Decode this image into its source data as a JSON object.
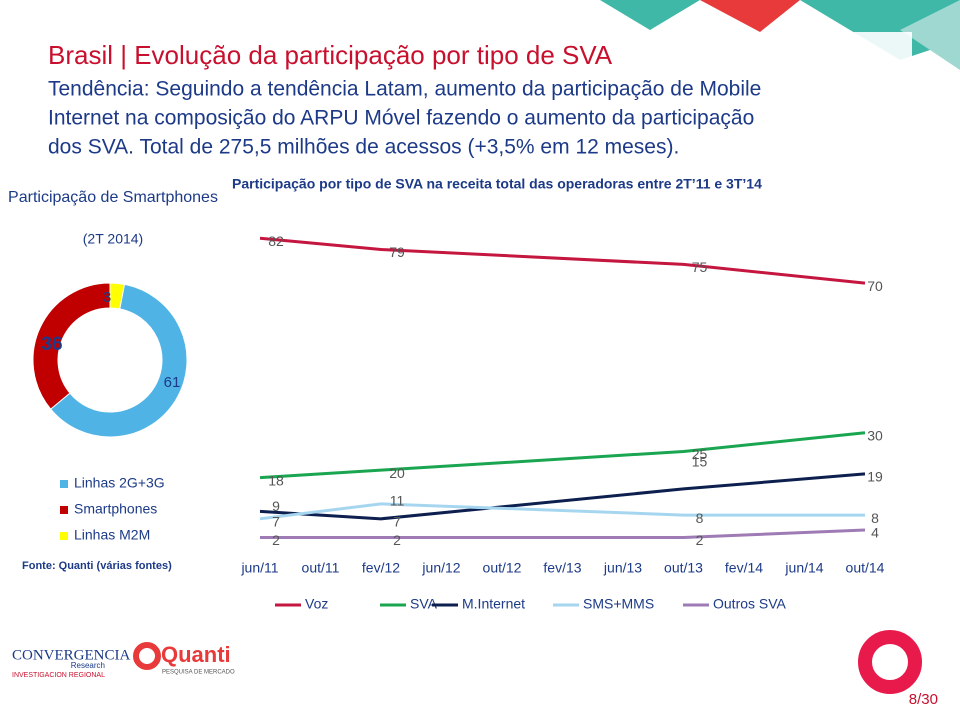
{
  "header": {
    "title": "Brasil | Evolução da participação por tipo de SVA",
    "subtitle_lines": [
      "Tendência: Seguindo a tendência Latam, aumento da participação de Mobile",
      "Internet na composição do ARPU Móvel fazendo o aumento da participação",
      "dos SVA. Total de 275,5 milhões de acessos (+3,5% em 12 meses)."
    ]
  },
  "chart_data": [
    {
      "type": "donut",
      "title": "Participação de Smartphones",
      "subtitle": "(2T 2014)",
      "categories": [
        "Linhas 2G+3G",
        "Smartphones",
        "Linhas M2M"
      ],
      "values": [
        61,
        36,
        3
      ],
      "colors": [
        "#4fb3e6",
        "#c00000",
        "#ffff00"
      ]
    },
    {
      "type": "line",
      "title": "Participação por tipo de SVA na receita total das operadoras entre 2T’11 e 3T’14",
      "categories": [
        "jun/11",
        "out/11",
        "fev/12",
        "jun/12",
        "out/12",
        "fev/13",
        "jun/13",
        "out/13",
        "fev/14",
        "jun/14",
        "out/14"
      ],
      "x": [
        "jun/11",
        "fev/12",
        "out/13",
        "out/14"
      ],
      "ylim": [
        0,
        85
      ],
      "series": [
        {
          "name": "Voz",
          "color": "#c4163f",
          "values": [
            82,
            79,
            75,
            70
          ]
        },
        {
          "name": "SVA",
          "color": "#1aa650",
          "values": [
            18,
            20,
            25,
            30
          ]
        },
        {
          "name": "M.Internet",
          "color": "#0d1f4e",
          "values": [
            9,
            7,
            15,
            19
          ]
        },
        {
          "name": "SMS+MMS",
          "color": "#a6d6ef",
          "values": [
            7,
            11,
            8,
            8
          ]
        },
        {
          "name": "Outros SVA",
          "color": "#9e7bb5",
          "values": [
            2,
            2,
            2,
            4
          ]
        }
      ]
    }
  ],
  "footer": {
    "source": "Fonte: Quanti (várias fontes)",
    "page": "8/30",
    "logo1": "CONVERGENCIA",
    "logo1_sub": "Research",
    "logo1_sub2": "INVESTIGACION REGIONAL",
    "logo2": "Quanti",
    "logo2_sub": "PESQUISA DE MERCADO"
  }
}
